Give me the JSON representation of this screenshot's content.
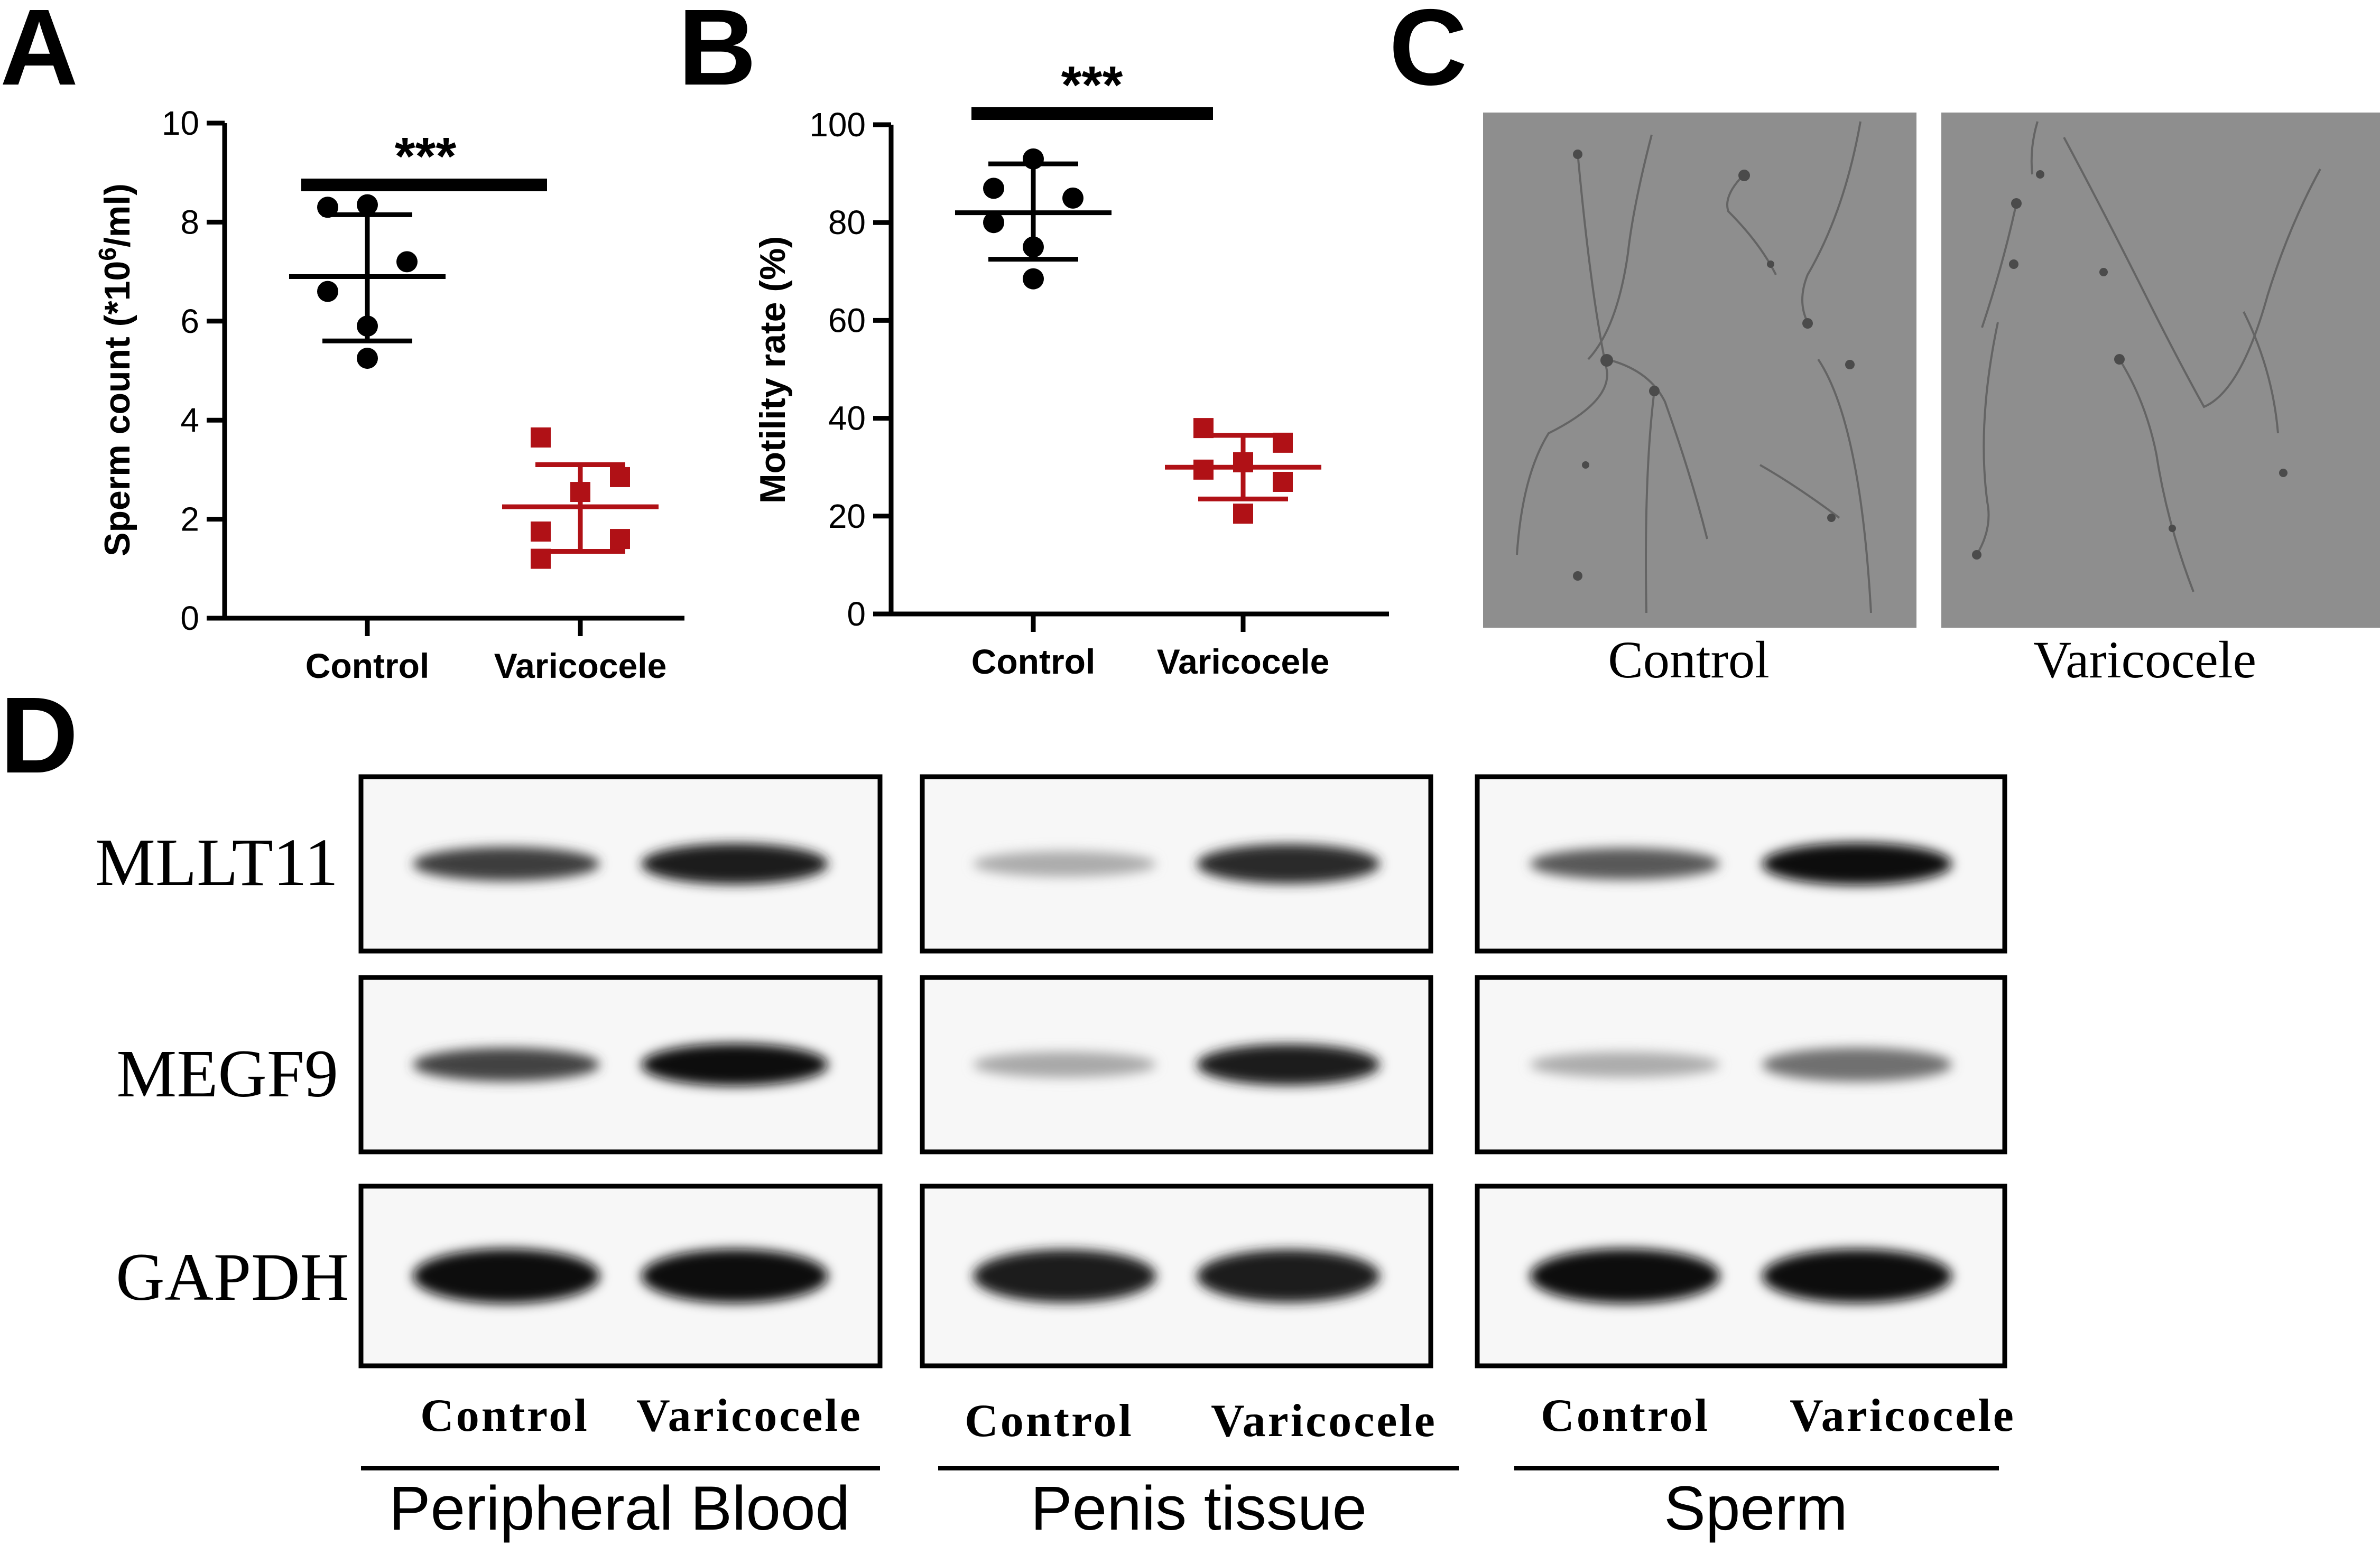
{
  "panel_labels": {
    "a": "A",
    "b": "B",
    "c": "C",
    "d": "D"
  },
  "significance": {
    "a": "***",
    "b": "***"
  },
  "colors": {
    "control": "#000000",
    "varicocele": "#b01116",
    "micrograph_bg": "#8d8d8d"
  },
  "chart_data": [
    {
      "type": "scatter",
      "panel": "A",
      "title": "",
      "xlabel": "",
      "ylabel_prefix": "Sperm count (*10",
      "ylabel_sup": "6",
      "ylabel_suffix": "/ml)",
      "ylim": [
        0,
        10
      ],
      "yticks": [
        "0",
        "2",
        "4",
        "6",
        "8",
        "10"
      ],
      "categories": [
        "Control",
        "Varicocele"
      ],
      "series": [
        {
          "category": "Control",
          "marker": "circle",
          "color": "#000000",
          "values": [
            8.35,
            8.3,
            7.2,
            6.6,
            5.9,
            5.25
          ],
          "mean": 6.9,
          "sd_low": 5.6,
          "sd_high": 8.15
        },
        {
          "category": "Varicocele",
          "marker": "square",
          "color": "#b01116",
          "values": [
            3.65,
            2.85,
            2.55,
            1.75,
            1.6,
            1.2
          ],
          "mean": 2.25,
          "sd_low": 1.35,
          "sd_high": 3.1
        }
      ]
    },
    {
      "type": "scatter",
      "panel": "B",
      "title": "",
      "xlabel": "",
      "ylabel": "Motility rate (%)",
      "ylim": [
        0,
        100
      ],
      "yticks": [
        "0",
        "20",
        "40",
        "60",
        "80",
        "100"
      ],
      "categories": [
        "Control",
        "Varicocele"
      ],
      "series": [
        {
          "category": "Control",
          "marker": "circle",
          "color": "#000000",
          "values": [
            93,
            87,
            85,
            80,
            75,
            68.5
          ],
          "mean": 82,
          "sd_low": 72.5,
          "sd_high": 92
        },
        {
          "category": "Varicocele",
          "marker": "square",
          "color": "#b01116",
          "values": [
            38,
            35,
            31,
            29.5,
            27,
            20.5
          ],
          "mean": 30,
          "sd_low": 23.5,
          "sd_high": 36.5
        }
      ]
    }
  ],
  "panel_c": {
    "labels": [
      "Control",
      "Varicocele"
    ]
  },
  "panel_d": {
    "proteins": [
      "MLLT11",
      "MEGF9",
      "GAPDH"
    ],
    "groups": [
      {
        "name": "Peripheral Blood",
        "lanes": [
          "Control",
          "Varicocele"
        ],
        "intensity": [
          [
            0.78,
            0.92
          ],
          [
            0.75,
            1.0
          ],
          [
            1.0,
            0.97
          ]
        ]
      },
      {
        "name": "Penis tissue",
        "lanes": [
          "Control",
          "Varicocele"
        ],
        "intensity": [
          [
            0.28,
            0.85
          ],
          [
            0.3,
            0.93
          ],
          [
            0.93,
            0.92
          ]
        ]
      },
      {
        "name": "Sperm",
        "lanes": [
          "Control",
          "Varicocele"
        ],
        "intensity": [
          [
            0.65,
            1.0
          ],
          [
            0.28,
            0.55
          ],
          [
            1.0,
            0.97
          ]
        ]
      }
    ]
  }
}
